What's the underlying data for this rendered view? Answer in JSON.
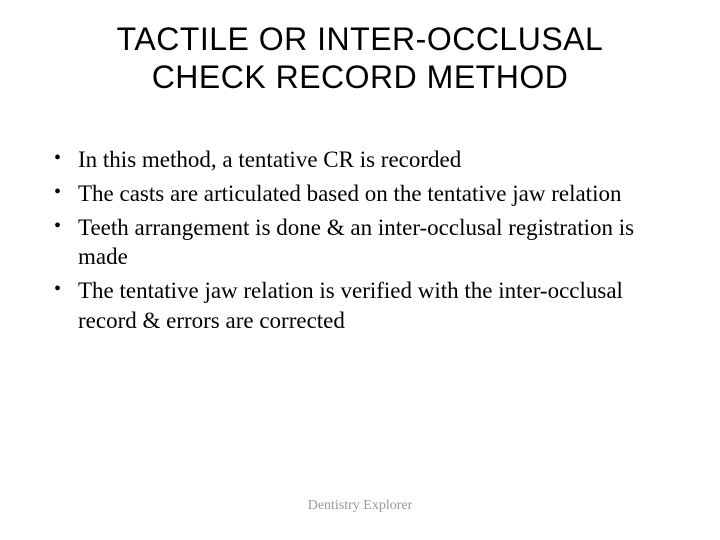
{
  "slide": {
    "title_line1": "TACTILE OR INTER-OCCLUSAL",
    "title_line2": "CHECK RECORD METHOD",
    "bullets": [
      "In this method, a tentative CR is recorded",
      "The casts are articulated based on the tentative jaw relation",
      "Teeth arrangement is done & an inter-occlusal registration is made",
      "The tentative jaw relation is verified with the inter-occlusal record & errors are corrected"
    ],
    "footer": "Dentistry Explorer"
  },
  "style": {
    "title_fontsize": 32,
    "body_fontsize": 23,
    "footer_fontsize": 14,
    "title_font": "Arial",
    "body_font": "Times New Roman",
    "text_color": "#000000",
    "footer_color": "#9a9a9a",
    "background_color": "#ffffff"
  }
}
